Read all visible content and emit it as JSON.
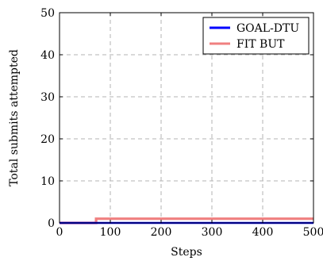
{
  "chart_data": {
    "type": "line",
    "xlabel": "Steps",
    "ylabel": "Total submits attempted",
    "xlim": [
      0,
      500
    ],
    "ylim": [
      0,
      50
    ],
    "xticks": [
      "0",
      "100",
      "200",
      "300",
      "400",
      "500"
    ],
    "yticks": [
      "0",
      "10",
      "20",
      "30",
      "40",
      "50"
    ],
    "grid": true,
    "legend_position": "top-right",
    "series": [
      {
        "name": "FIT BUT",
        "color": "#f08080",
        "step": true,
        "points": [
          [
            0,
            0
          ],
          [
            72,
            0
          ],
          [
            72,
            1
          ],
          [
            500,
            1
          ]
        ]
      },
      {
        "name": "GOAL-DTU",
        "color": "#0000ff",
        "step": true,
        "points": [
          [
            0,
            0
          ],
          [
            500,
            0
          ]
        ]
      }
    ],
    "legend_order": [
      "GOAL-DTU",
      "FIT BUT"
    ]
  }
}
